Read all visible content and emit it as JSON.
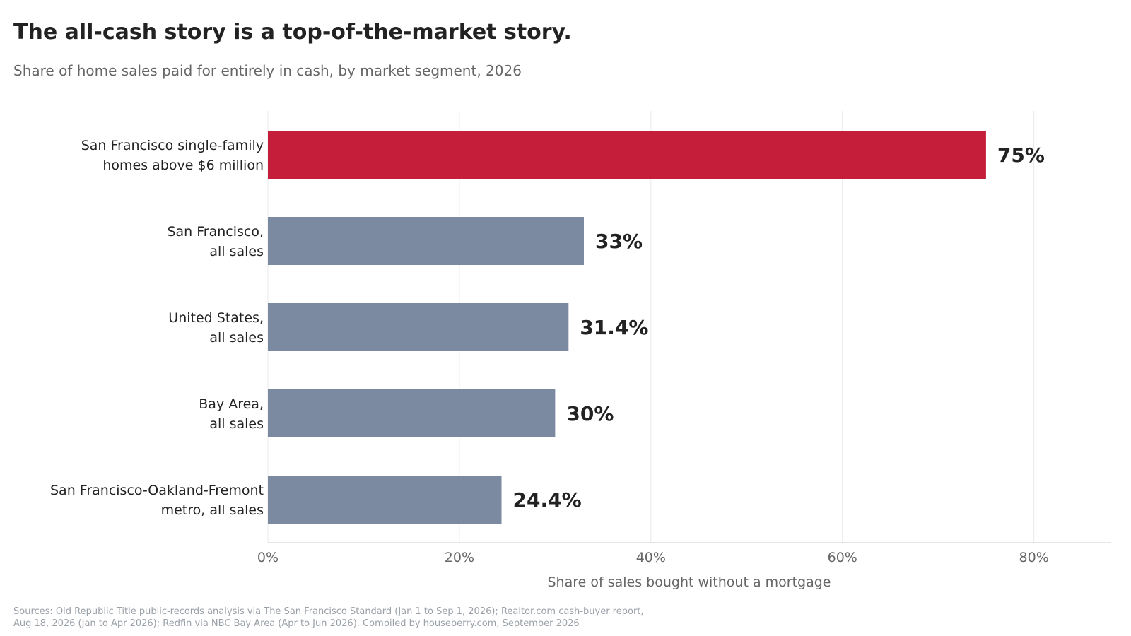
{
  "title": "The all-cash story is a top-of-the-market story.",
  "subtitle": "Share of home sales paid for entirely in cash, by market segment, 2026",
  "colors": {
    "highlight": "#c41e3a",
    "default": "#7b8aa1",
    "grid": "#e8e8e8",
    "axis": "#cccccc",
    "value_label": "#222222",
    "category_label": "#222222",
    "tick_label": "#666666"
  },
  "chart_data": {
    "type": "bar",
    "orientation": "horizontal",
    "categories": [
      [
        "San Francisco single-family",
        "homes above $6 million"
      ],
      [
        "San Francisco,",
        "all sales"
      ],
      [
        "United States,",
        "all sales"
      ],
      [
        "Bay Area,",
        "all sales"
      ],
      [
        "San Francisco-Oakland-Fremont",
        "metro, all sales"
      ]
    ],
    "values": [
      75,
      33,
      31.4,
      30,
      24.4
    ],
    "value_labels": [
      "75%",
      "33%",
      "31.4%",
      "30%",
      "24.4%"
    ],
    "highlight_index": 0,
    "xlabel": "Share of sales bought without a mortgage",
    "xlim": [
      0,
      88
    ],
    "xticks": [
      0,
      20,
      40,
      60,
      80
    ],
    "xtick_labels": [
      "0%",
      "20%",
      "40%",
      "60%",
      "80%"
    ],
    "grid": "vertical",
    "legend": "none"
  },
  "sources": [
    "Sources: Old Republic Title public-records analysis via The San Francisco Standard (Jan 1 to Sep 1, 2026); Realtor.com cash-buyer report,",
    "Aug 18, 2026 (Jan to Apr 2026); Redfin via NBC Bay Area (Apr to Jun 2026). Compiled by houseberry.com, September 2026"
  ]
}
